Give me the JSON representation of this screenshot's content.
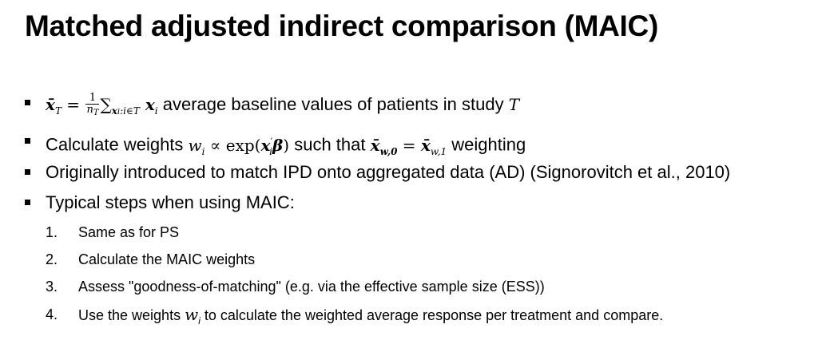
{
  "slide": {
    "title": "Matched adjusted indirect comparison (MAIC)",
    "bullets": [
      {
        "math_pre": "x̄",
        "math_sub": "T",
        "math_eq": " = ",
        "frac_num": "1",
        "frac_den": "n",
        "frac_den_sub": "T",
        "sum": "∑",
        "sum_sub": "x",
        "sum_sub2": "i",
        "sum_sub3": ":i∈T",
        "var": " x",
        "var_sub": "i",
        "text": " average baseline values of patients in study ",
        "text_var": "T"
      },
      {
        "text_pre": "Calculate weights ",
        "w": "w",
        "w_sub": "i",
        "prop": " ∝ exp(",
        "x": "x",
        "x_sub": "i",
        "prime": "′",
        "beta": "β",
        "close": ")",
        "text_mid": " such that ",
        "x1": "x̄",
        "x1_sub": "w,0",
        "eq": " = ",
        "x2": "x̄",
        "x2_sub": "w,1",
        "text_post": " weighting"
      },
      {
        "text": "Originally introduced to match IPD onto aggregated data (AD) (Signorovitch et al., 2010)"
      },
      {
        "text": "Typical steps when using MAIC:"
      }
    ],
    "steps": [
      {
        "num": "1.",
        "text": "Same as for PS"
      },
      {
        "num": "2.",
        "text": "Calculate the MAIC weights"
      },
      {
        "num": "3.",
        "text": "Assess \"goodness-of-matching\" (e.g. via the effective sample size (ESS))"
      },
      {
        "num": "4.",
        "text_pre": "Use the weights ",
        "w": "w",
        "w_sub": "i",
        "text_post": " to calculate the weighted average response per treatment and compare."
      }
    ]
  }
}
